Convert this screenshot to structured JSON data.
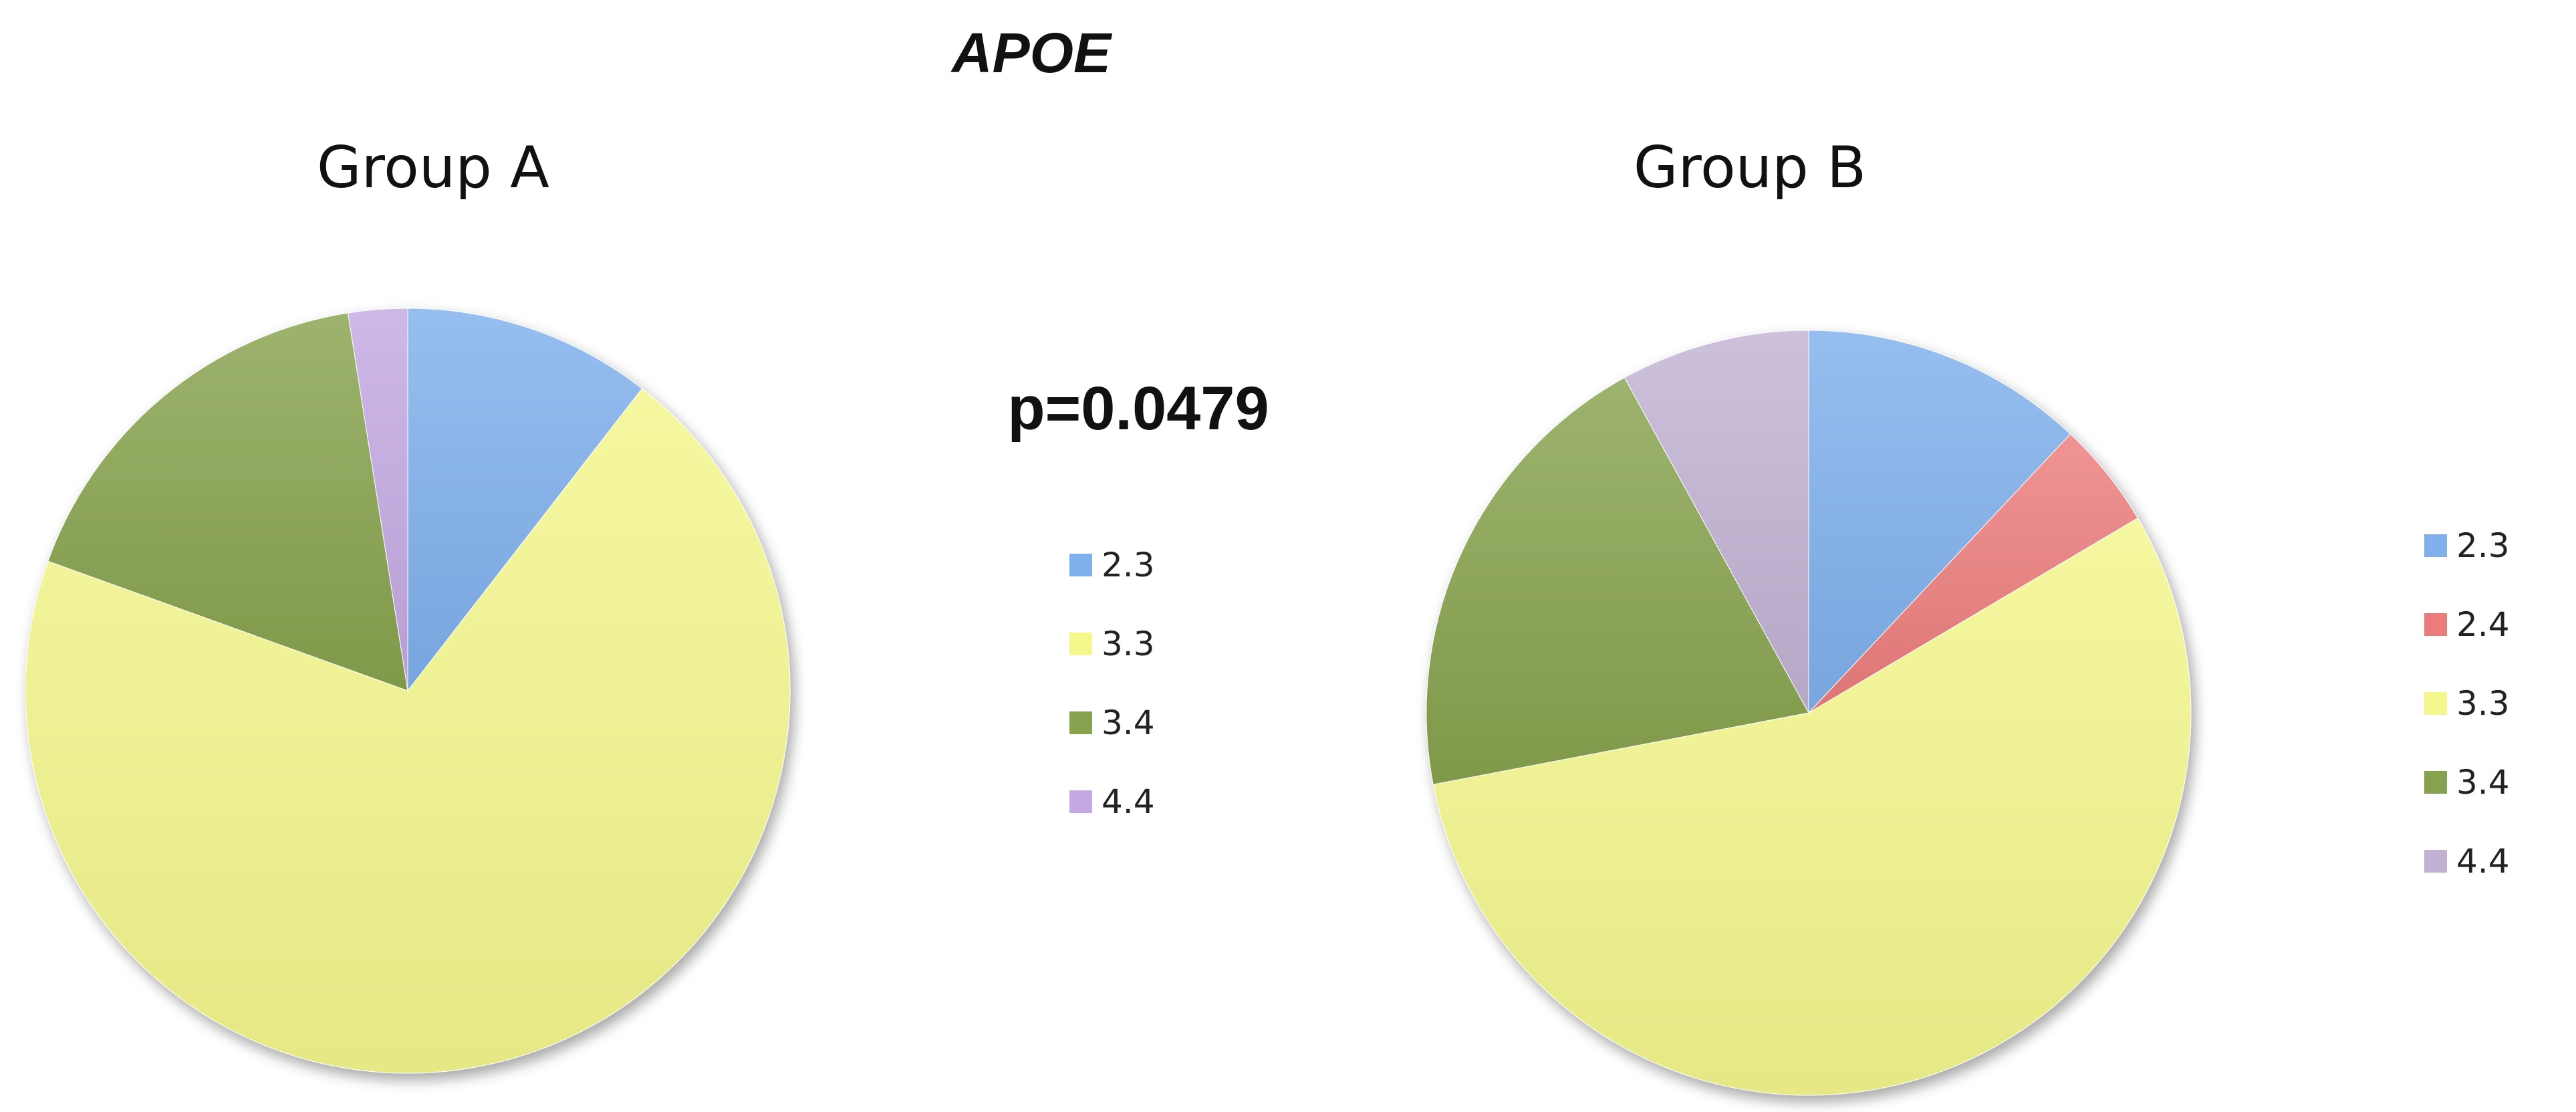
{
  "title": "APOE",
  "annotation": "p=0.0479",
  "chart_data": [
    {
      "type": "pie",
      "title": "Group A",
      "categories": [
        "2.3",
        "3.3",
        "3.4",
        "4.4"
      ],
      "values": [
        10.5,
        70.0,
        17.0,
        2.5
      ],
      "colors": [
        "#7fb0ec",
        "#f4f78c",
        "#87a24e",
        "#c3a8e2"
      ],
      "start_angle_deg": 0,
      "direction": "clockwise",
      "legend": {
        "position": "right",
        "entries": [
          "2.3",
          "3.3",
          "3.4",
          "4.4"
        ]
      }
    },
    {
      "type": "pie",
      "title": "Group B",
      "categories": [
        "2.3",
        "2.4",
        "3.3",
        "3.4",
        "4.4"
      ],
      "values": [
        12.0,
        4.5,
        55.5,
        20.0,
        8.0
      ],
      "colors": [
        "#7fb0ec",
        "#ec7c7c",
        "#f4f78c",
        "#87a24e",
        "#c1b2d3"
      ],
      "start_angle_deg": 0,
      "direction": "clockwise",
      "legend": {
        "position": "right",
        "entries": [
          "2.3",
          "2.4",
          "3.3",
          "3.4",
          "4.4"
        ]
      }
    }
  ]
}
